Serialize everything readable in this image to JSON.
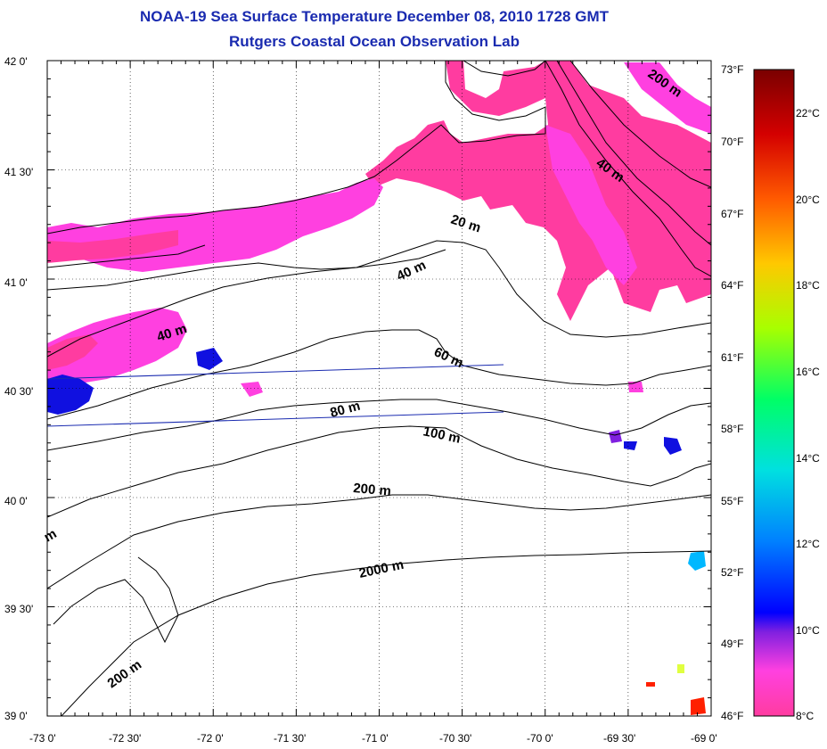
{
  "title": "NOAA-19 Sea Surface Temperature December 08, 2010 1728 GMT",
  "subtitle": "Rutgers Coastal Ocean Observation Lab",
  "lat_labels": [
    "42 0'",
    "41 30'",
    "41 0'",
    "40 30'",
    "40 0'",
    "39 30'",
    "39 0'"
  ],
  "lon_labels": [
    "-73 0'",
    "-72 30'",
    "-72 0'",
    "-71 30'",
    "-71 0'",
    "-70 30'",
    "-70 0'",
    "-69 30'",
    "-69 0'"
  ],
  "colorbar": {
    "f_labels": [
      "73°F",
      "70°F",
      "67°F",
      "64°F",
      "61°F",
      "58°F",
      "55°F",
      "52°F",
      "49°F",
      "46°F"
    ],
    "c_labels": [
      "22°C",
      "20°C",
      "18°C",
      "16°C",
      "14°C",
      "12°C",
      "10°C",
      "8°C"
    ],
    "colors": [
      "#7a0000",
      "#d40000",
      "#ff5a00",
      "#ffc800",
      "#a8ff00",
      "#00ff66",
      "#00e0e0",
      "#0080ff",
      "#0000ff",
      "#8020e0",
      "#ff40e0",
      "#ff3ca0"
    ]
  },
  "contour_labels": [
    "200 m",
    "40 m",
    "20 m",
    "40 m",
    "40 m",
    "60 m",
    "80 m",
    "100 m",
    "200 m",
    "2000 m",
    "200 m",
    "m"
  ],
  "colors": {
    "title": "#1a2bb0",
    "sst_pink": "#ff3ca0",
    "sst_magenta": "#ff40e0",
    "sst_blue": "#1010e0",
    "track": "#1a2bb0"
  }
}
